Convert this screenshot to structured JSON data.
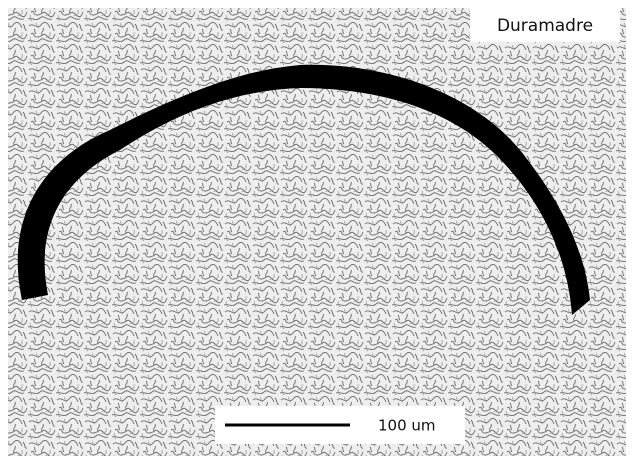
{
  "label": "Duramadre",
  "scale_bar": {
    "label": "100 um"
  }
}
